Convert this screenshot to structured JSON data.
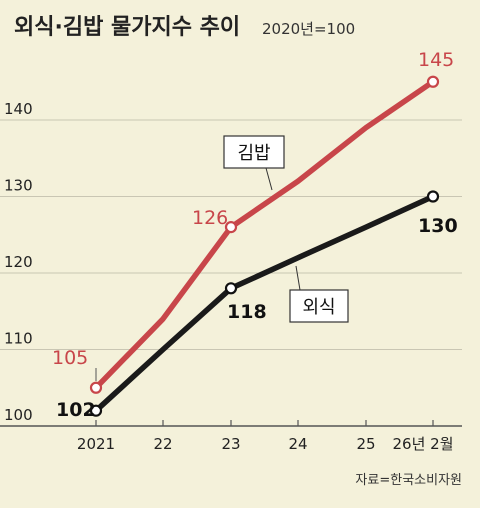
{
  "chart_data": {
    "type": "line",
    "title": "외식·김밥 물가지수 추이",
    "subtitle": "2020년=100",
    "categories": [
      "2021",
      "22",
      "23",
      "24",
      "25",
      "26년 2월"
    ],
    "x": [
      2021,
      2022,
      2023,
      2024,
      2025,
      2026.1
    ],
    "ylim": [
      100,
      150
    ],
    "yticks": [
      "100",
      "110",
      "120",
      "130",
      "140"
    ],
    "ytick_values": [
      100,
      110,
      120,
      130,
      140
    ],
    "grid": "horizontal",
    "series": [
      {
        "name": "김밥",
        "color": "#c8464a",
        "values": [
          105,
          114,
          126,
          132,
          139,
          145
        ],
        "markers": [
          0,
          2,
          5
        ],
        "labels": [
          "105",
          "",
          "126",
          "",
          "",
          "145"
        ]
      },
      {
        "name": "외식",
        "color": "#1a1a1a",
        "values": [
          102,
          110,
          118,
          122,
          126,
          130
        ],
        "markers": [
          0,
          2,
          5
        ],
        "labels": [
          "102",
          "",
          "118",
          "",
          "",
          "130"
        ]
      }
    ],
    "source": "자료=한국소비자원"
  }
}
